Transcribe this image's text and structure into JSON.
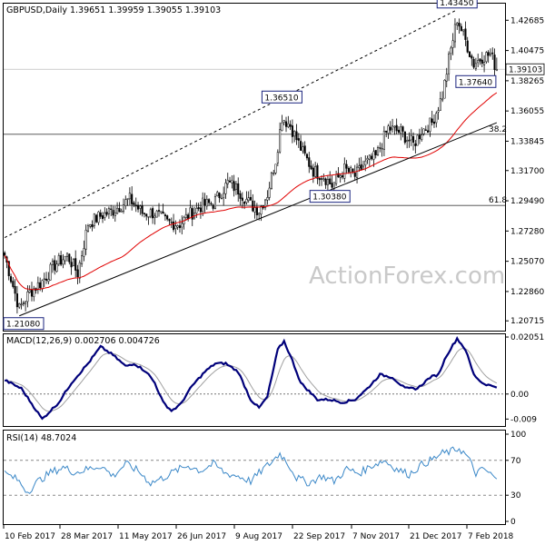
{
  "chart_data": [
    {
      "panel": "price",
      "type": "candlestick",
      "title": "GBPUSD,Daily  1.39651 1.39959 1.39055 1.39103",
      "symbol": "GBPUSD",
      "timeframe": "Daily",
      "ohlc": {
        "open": 1.39651,
        "high": 1.39959,
        "low": 1.39055,
        "close": 1.39103
      },
      "current_price_label": "1.39103",
      "ylim": [
        1.2,
        1.439
      ],
      "y_ticks": [
        "1.42685",
        "1.40475",
        "1.38265",
        "1.36055",
        "1.33845",
        "1.31700",
        "1.29490",
        "1.27280",
        "1.25070",
        "1.22860",
        "1.20715"
      ],
      "x_ticks": [
        "10 Feb 2017",
        "28 Mar 2017",
        "11 May 2017",
        "26 Jun 2017",
        "9 Aug 2017",
        "22 Sep 2017",
        "7 Nov 2017",
        "21 Dec 2017",
        "7 Feb 2018"
      ],
      "swing_labels": [
        {
          "text": "1.43450",
          "price": 1.4345,
          "bar": 217
        },
        {
          "text": "1.36510",
          "price": 1.3651,
          "bar": 133
        },
        {
          "text": "1.37640",
          "price": 1.3764,
          "bar": 226
        },
        {
          "text": "1.30380",
          "price": 1.3038,
          "bar": 156
        },
        {
          "text": "1.21080",
          "price": 1.2108,
          "bar": 7
        }
      ],
      "fib_levels": [
        {
          "label": "38.2",
          "price": 1.3435
        },
        {
          "label": "61.8",
          "price": 1.2915
        }
      ],
      "series": [
        {
          "style": "candles",
          "color": "#000000",
          "trend_anchors": [
            [
              0,
              1.255
            ],
            [
              7,
              1.216
            ],
            [
              12,
              1.228
            ],
            [
              18,
              1.236
            ],
            [
              24,
              1.248
            ],
            [
              30,
              1.255
            ],
            [
              35,
              1.242
            ],
            [
              40,
              1.278
            ],
            [
              45,
              1.283
            ],
            [
              52,
              1.288
            ],
            [
              60,
              1.296
            ],
            [
              66,
              1.286
            ],
            [
              72,
              1.286
            ],
            [
              78,
              1.279
            ],
            [
              84,
              1.278
            ],
            [
              88,
              1.284
            ],
            [
              95,
              1.292
            ],
            [
              100,
              1.293
            ],
            [
              107,
              1.308
            ],
            [
              112,
              1.303
            ],
            [
              118,
              1.292
            ],
            [
              122,
              1.288
            ],
            [
              126,
              1.3
            ],
            [
              130,
              1.325
            ],
            [
              133,
              1.356
            ],
            [
              137,
              1.35
            ],
            [
              143,
              1.33
            ],
            [
              148,
              1.317
            ],
            [
              153,
              1.313
            ],
            [
              157,
              1.306
            ],
            [
              163,
              1.318
            ],
            [
              168,
              1.313
            ],
            [
              173,
              1.322
            ],
            [
              178,
              1.327
            ],
            [
              184,
              1.348
            ],
            [
              190,
              1.345
            ],
            [
              196,
              1.336
            ],
            [
              200,
              1.346
            ],
            [
              205,
              1.352
            ],
            [
              210,
              1.372
            ],
            [
              213,
              1.398
            ],
            [
              217,
              1.428
            ],
            [
              221,
              1.412
            ],
            [
              225,
              1.395
            ],
            [
              229,
              1.4
            ],
            [
              233,
              1.402
            ],
            [
              236,
              1.391
            ]
          ]
        },
        {
          "style": "line",
          "color": "#e00000",
          "period": 55
        }
      ],
      "trendlines": [
        {
          "style": "solid",
          "color": "#000000",
          "from": [
            7,
            1.2108
          ],
          "to": [
            236,
            1.352
          ]
        },
        {
          "style": "dashed",
          "color": "#000000",
          "from": [
            0,
            1.268
          ],
          "to": [
            217,
            1.4345
          ]
        }
      ]
    },
    {
      "panel": "macd",
      "type": "line",
      "title": "MACD(12,26,9) 0.002706 0.004726",
      "params": "12,26,9",
      "values_shown": [
        0.002706,
        0.004726
      ],
      "ylim": [
        -0.0115,
        0.0215
      ],
      "y_ticks": [
        "0.02051",
        "0.00",
        "-0.009"
      ],
      "zero_line": 0,
      "series": [
        {
          "color": "#00007a",
          "anchors": [
            [
              0,
              0.005
            ],
            [
              8,
              0.002
            ],
            [
              18,
              -0.009
            ],
            [
              26,
              -0.003
            ],
            [
              32,
              0.004
            ],
            [
              40,
              0.011
            ],
            [
              46,
              0.017
            ],
            [
              52,
              0.014
            ],
            [
              58,
              0.01
            ],
            [
              62,
              0.011
            ],
            [
              68,
              0.008
            ],
            [
              72,
              0.004
            ],
            [
              76,
              -0.003
            ],
            [
              80,
              -0.006
            ],
            [
              84,
              -0.004
            ],
            [
              90,
              0.003
            ],
            [
              96,
              0.008
            ],
            [
              101,
              0.011
            ],
            [
              106,
              0.011
            ],
            [
              112,
              0.008
            ],
            [
              118,
              -0.002
            ],
            [
              122,
              -0.005
            ],
            [
              126,
              -0.001
            ],
            [
              131,
              0.016
            ],
            [
              134,
              0.019
            ],
            [
              138,
              0.012
            ],
            [
              142,
              0.004
            ],
            [
              146,
              0.001
            ],
            [
              150,
              -0.002
            ],
            [
              156,
              -0.002
            ],
            [
              162,
              -0.003
            ],
            [
              168,
              -0.002
            ],
            [
              174,
              0.002
            ],
            [
              180,
              0.007
            ],
            [
              186,
              0.006
            ],
            [
              192,
              0.002
            ],
            [
              198,
              0.002
            ],
            [
              204,
              0.006
            ],
            [
              208,
              0.007
            ],
            [
              212,
              0.014
            ],
            [
              217,
              0.02
            ],
            [
              221,
              0.016
            ],
            [
              225,
              0.007
            ],
            [
              229,
              0.004
            ],
            [
              233,
              0.003
            ],
            [
              236,
              0.002706
            ]
          ]
        },
        {
          "color": "#a0a0a0",
          "note": "signal"
        }
      ]
    },
    {
      "panel": "rsi",
      "type": "line",
      "title": "RSI(14) 48.7024",
      "params": 14,
      "value_shown": 48.7024,
      "ylim": [
        0,
        100
      ],
      "y_ticks": [
        "100",
        "70",
        "30",
        "0"
      ],
      "levels": [
        70,
        30
      ],
      "series": [
        {
          "color": "#3b88c8",
          "anchors": [
            [
              0,
              55
            ],
            [
              6,
              48
            ],
            [
              11,
              34
            ],
            [
              16,
              46
            ],
            [
              22,
              56
            ],
            [
              28,
              62
            ],
            [
              34,
              56
            ],
            [
              40,
              60
            ],
            [
              46,
              64
            ],
            [
              52,
              52
            ],
            [
              58,
              66
            ],
            [
              64,
              58
            ],
            [
              70,
              44
            ],
            [
              76,
              50
            ],
            [
              82,
              58
            ],
            [
              88,
              64
            ],
            [
              94,
              58
            ],
            [
              100,
              66
            ],
            [
              106,
              55
            ],
            [
              112,
              52
            ],
            [
              118,
              46
            ],
            [
              124,
              60
            ],
            [
              128,
              68
            ],
            [
              132,
              78
            ],
            [
              136,
              66
            ],
            [
              140,
              50
            ],
            [
              146,
              44
            ],
            [
              152,
              52
            ],
            [
              158,
              46
            ],
            [
              164,
              60
            ],
            [
              170,
              55
            ],
            [
              176,
              64
            ],
            [
              182,
              70
            ],
            [
              188,
              60
            ],
            [
              194,
              54
            ],
            [
              200,
              65
            ],
            [
              206,
              72
            ],
            [
              210,
              78
            ],
            [
              214,
              80
            ],
            [
              218,
              84
            ],
            [
              222,
              74
            ],
            [
              226,
              55
            ],
            [
              230,
              60
            ],
            [
              234,
              52
            ],
            [
              236,
              48.7
            ]
          ]
        }
      ]
    }
  ],
  "watermark": "ActionForex.com"
}
